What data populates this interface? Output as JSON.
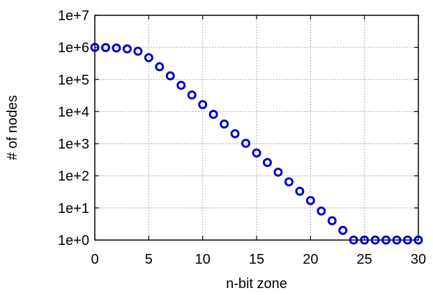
{
  "chart_data": {
    "type": "scatter",
    "title": "",
    "xlabel": "n-bit zone",
    "ylabel": "# of nodes",
    "xlim": [
      0,
      30
    ],
    "ylim": [
      1,
      10000000
    ],
    "y_scale": "log",
    "grid": true,
    "x_ticks": [
      "0",
      "5",
      "10",
      "15",
      "20",
      "25",
      "30"
    ],
    "x_tick_values": [
      0,
      5,
      10,
      15,
      20,
      25,
      30
    ],
    "y_ticks": [
      "1e+0",
      "1e+1",
      "1e+2",
      "1e+3",
      "1e+4",
      "1e+5",
      "1e+6",
      "1e+7"
    ],
    "y_tick_values": [
      1,
      10,
      100,
      1000,
      10000,
      100000,
      1000000,
      10000000
    ],
    "marker_color": "#0000cc",
    "series": [
      {
        "x": [
          0,
          1,
          2,
          3,
          4,
          5,
          6,
          7,
          8,
          9,
          10,
          11,
          12,
          13,
          14,
          15,
          16,
          17,
          18,
          19,
          20,
          21,
          22,
          23,
          24,
          25,
          26,
          27,
          28,
          29,
          30
        ],
        "y": [
          1000000,
          990000,
          960000,
          900000,
          760000,
          480000,
          250000,
          130000,
          66000,
          33000,
          16500,
          8200,
          4100,
          2050,
          1030,
          515,
          260,
          130,
          65,
          33,
          17,
          8,
          4,
          2,
          1,
          1,
          1,
          1,
          1,
          1,
          1
        ]
      }
    ]
  }
}
